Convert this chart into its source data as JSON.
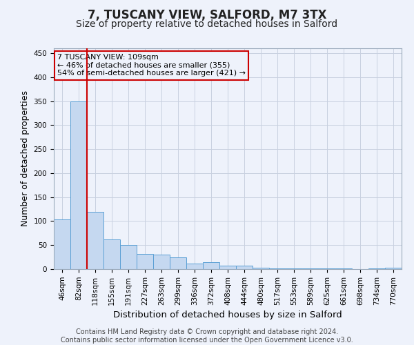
{
  "title": "7, TUSCANY VIEW, SALFORD, M7 3TX",
  "subtitle": "Size of property relative to detached houses in Salford",
  "xlabel": "Distribution of detached houses by size in Salford",
  "ylabel": "Number of detached properties",
  "categories": [
    "46sqm",
    "82sqm",
    "118sqm",
    "155sqm",
    "191sqm",
    "227sqm",
    "263sqm",
    "299sqm",
    "336sqm",
    "372sqm",
    "408sqm",
    "444sqm",
    "480sqm",
    "517sqm",
    "553sqm",
    "589sqm",
    "625sqm",
    "661sqm",
    "698sqm",
    "734sqm",
    "770sqm"
  ],
  "values": [
    104,
    350,
    120,
    62,
    50,
    31,
    30,
    25,
    11,
    14,
    7,
    7,
    3,
    2,
    2,
    2,
    2,
    1,
    0,
    1,
    3
  ],
  "bar_color": "#c5d8f0",
  "bar_edge_color": "#5a9fd4",
  "grid_color": "#c8d0e0",
  "background_color": "#eef2fb",
  "vline_x_index": 2,
  "vline_color": "#cc0000",
  "annotation_line1": "7 TUSCANY VIEW: 109sqm",
  "annotation_line2": "← 46% of detached houses are smaller (355)",
  "annotation_line3": "54% of semi-detached houses are larger (421) →",
  "annotation_box_color": "#cc0000",
  "ylim": [
    0,
    460
  ],
  "yticks": [
    0,
    50,
    100,
    150,
    200,
    250,
    300,
    350,
    400,
    450
  ],
  "footer": "Contains HM Land Registry data © Crown copyright and database right 2024.\nContains public sector information licensed under the Open Government Licence v3.0.",
  "title_fontsize": 12,
  "subtitle_fontsize": 10,
  "xlabel_fontsize": 9.5,
  "ylabel_fontsize": 9,
  "tick_fontsize": 7.5,
  "footer_fontsize": 7,
  "annot_fontsize": 8
}
